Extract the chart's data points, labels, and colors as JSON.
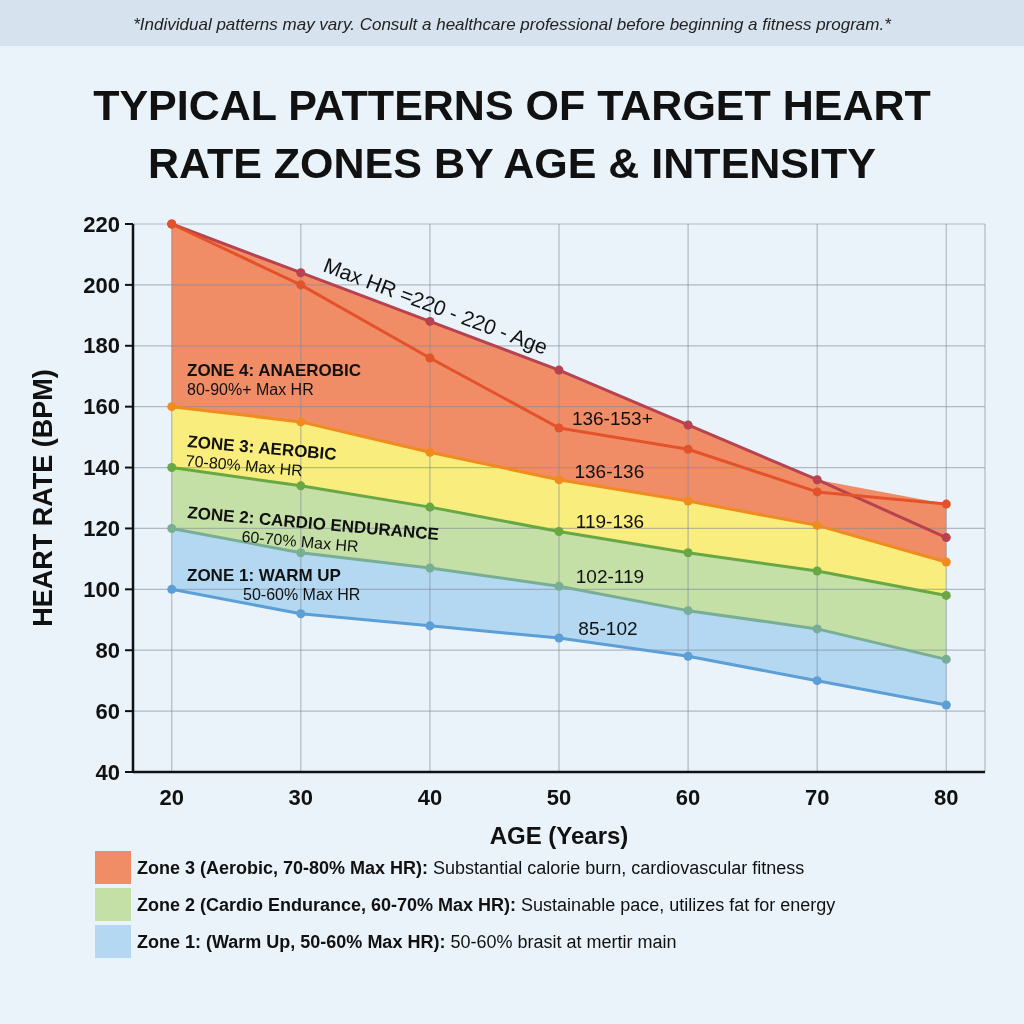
{
  "chart_data": {
    "type": "line",
    "title": "TYPICAL PATTERNS OF TARGET HEART RATE ZONES BY AGE & INTENSITY",
    "xlabel": "AGE (Years)",
    "ylabel": "HEART RATE (BPM)",
    "x": [
      20,
      30,
      40,
      50,
      60,
      70,
      80
    ],
    "xlim": [
      17,
      83
    ],
    "xticks": [
      20,
      30,
      40,
      50,
      60,
      70,
      80
    ],
    "ylim": [
      40,
      220
    ],
    "yticks": [
      40,
      60,
      80,
      100,
      120,
      140,
      160,
      180,
      200,
      220
    ],
    "grid": true,
    "legend": "bottom",
    "marker": "circle",
    "line_style": "solid",
    "annotations": [
      "*Individual patterns may vary. Consult a healthcare professional before beginning a fitness program.*",
      "ZONE 4: ANAEROBIC\n80-90%+ Max HR",
      "ZONE 3: AEROBIC\n70-80% Max HR",
      "ZONE 2: CARDIO ENDURANCE\n60-70% Max HR",
      "ZONE 1: WARM UP\n50-60% Max HR",
      {
        "text": "136-153+",
        "x": 51,
        "y": 154
      },
      {
        "text": "136-136",
        "x": 51.2,
        "y": 136.5
      },
      {
        "text": "119-136",
        "x": 51.3,
        "y": 120
      },
      {
        "text": "102-119",
        "x": 51.3,
        "y": 102
      },
      {
        "text": "85-102",
        "x": 51.5,
        "y": 85
      }
    ],
    "series": [
      {
        "type": "area",
        "name": "Zone 3 (Aerobic, 70-80% Max HR): Substantial calorie burn, cardiovascular fitness",
        "color": "#f08d67",
        "values": [
          null,
          null,
          null,
          null,
          null,
          null,
          null
        ],
        "upper": [
          220,
          204,
          188,
          172,
          154,
          136,
          128
        ],
        "lower": [
          160,
          155,
          145,
          136,
          129,
          121,
          109
        ]
      },
      {
        "type": "area",
        "color": "#f9ed7d",
        "values": [
          null,
          null,
          null,
          null,
          null,
          null,
          null
        ],
        "upper": [
          160,
          155,
          145,
          136,
          129,
          121,
          109
        ],
        "lower": [
          140,
          134,
          127,
          119,
          112,
          106,
          98
        ]
      },
      {
        "type": "area",
        "name": "Zone 2 (Cardio Endurance, 60-70% Max HR): Sustainable pace, utilizes fat for energy",
        "color": "#c5e0a6",
        "values": [
          null,
          null,
          null,
          null,
          null,
          null,
          null
        ],
        "upper": [
          140,
          134,
          127,
          119,
          112,
          106,
          98
        ],
        "lower": [
          120,
          112,
          107,
          101,
          93,
          87,
          77
        ]
      },
      {
        "type": "area",
        "name": "Zone 1: (Warm Up, 50-60% Max HR): 50-60% brasit at mertir main",
        "color": "#b4d8f1",
        "values": [
          null,
          null,
          null,
          null,
          null,
          null,
          null
        ],
        "upper": [
          120,
          112,
          107,
          101,
          93,
          87,
          77
        ],
        "lower": [
          100,
          92,
          88,
          84,
          78,
          70,
          62
        ]
      },
      {
        "name": "Max HR =220 - 220 - Age",
        "color": "#b8424f",
        "values": [
          220,
          204,
          188,
          172,
          154,
          136,
          117
        ]
      },
      {
        "color": "#e4522b",
        "values": [
          220,
          200,
          176,
          153,
          146,
          132,
          128
        ]
      },
      {
        "color": "#f08c1d",
        "values": [
          160,
          155,
          145,
          136,
          129,
          121,
          109
        ]
      },
      {
        "color": "#67a845",
        "values": [
          140,
          134,
          127,
          119,
          112,
          106,
          98
        ]
      },
      {
        "color": "#78ae96",
        "values": [
          120,
          112,
          107,
          101,
          93,
          87,
          77
        ]
      },
      {
        "color": "#5b9fd6",
        "values": [
          100,
          92,
          88,
          84,
          78,
          70,
          62
        ]
      }
    ]
  }
}
